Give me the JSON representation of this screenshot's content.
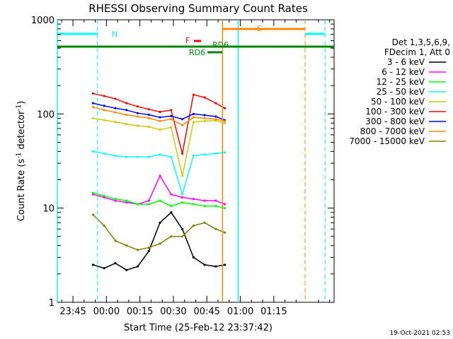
{
  "chart_data": {
    "type": "line",
    "title": "RHESSI Observing Summary Count Rates",
    "xlabel": "Start Time (25-Feb-12 23:37:42)",
    "ylabel_main": "Count Rate (s",
    "ylabel_sup1": "-1",
    "ylabel_mid": " detector",
    "ylabel_sup2": "-1",
    "ylabel_end": ")",
    "yscale": "log",
    "ylim": [
      1,
      1000
    ],
    "xlim_min": [
      -22,
      102
    ],
    "x_tick_minutes": [
      -15,
      0,
      15,
      30,
      45,
      60,
      75
    ],
    "x_tick_labels": [
      "23:45",
      "00:00",
      "00:15",
      "00:30",
      "00:45",
      "01:00",
      "01:15"
    ],
    "y_tick_values": [
      1,
      10,
      100,
      1000
    ],
    "y_tick_labels": [
      "1",
      "10",
      "100",
      "1000"
    ],
    "legend": {
      "header1": "Det 1,3,5,6,9,",
      "header2": "FDecim 1, Att 0",
      "entries": [
        "3 - 6 keV",
        "6 - 12 keV",
        "12 - 25 keV",
        "25 - 50 keV",
        "50 - 100 keV",
        "100 - 300 keV",
        "300 - 800 keV",
        "800 - 7000 keV",
        "7000 - 15000 keV"
      ],
      "colors": [
        "#000000",
        "#ff00ff",
        "#00ff00",
        "#00ffff",
        "#cccc00",
        "#ff0000",
        "#0000ff",
        "#ff8800",
        "#808000"
      ]
    },
    "annotations": {
      "N": "N",
      "S": "S",
      "F": "F",
      "RD1": "RD6",
      "RD2": "RD6"
    },
    "series": [
      {
        "name": "3 - 6 keV",
        "color": "#000000",
        "values": [
          2.5,
          2.3,
          2.6,
          2.2,
          2.4,
          3.5,
          7.0,
          9.0,
          6.0,
          3.0,
          2.5,
          2.4,
          2.5
        ]
      },
      {
        "name": "6 - 12 keV",
        "color": "#ff00ff",
        "values": [
          14,
          13,
          12,
          11.5,
          11,
          12,
          22,
          14,
          13,
          12.5,
          12,
          12,
          11
        ]
      },
      {
        "name": "12 - 25 keV",
        "color": "#00ff00",
        "values": [
          14.5,
          13.5,
          12.5,
          12,
          11,
          11,
          12,
          10.5,
          11.5,
          11,
          10.5,
          10.5,
          10
        ]
      },
      {
        "name": "25 - 50 keV",
        "color": "#00ffff",
        "values": [
          40,
          38,
          36,
          35,
          35,
          35,
          37,
          35,
          14,
          36,
          37,
          38,
          39
        ]
      },
      {
        "name": "50 - 100 keV",
        "color": "#cccc00",
        "values": [
          90,
          86,
          82,
          78,
          75,
          73,
          68,
          72,
          22,
          82,
          84,
          85,
          80
        ]
      },
      {
        "name": "100 - 300 keV",
        "color": "#ff0000",
        "values": [
          165,
          155,
          145,
          130,
          120,
          112,
          105,
          110,
          38,
          160,
          150,
          130,
          115
        ]
      },
      {
        "name": "300 - 800 keV",
        "color": "#0000ff",
        "values": [
          130,
          122,
          115,
          110,
          102,
          98,
          92,
          95,
          88,
          100,
          97,
          94,
          86
        ]
      },
      {
        "name": "800 - 7000 keV",
        "color": "#ff8800",
        "values": [
          118,
          110,
          104,
          98,
          94,
          90,
          84,
          88,
          76,
          92,
          90,
          88,
          84
        ]
      },
      {
        "name": "7000 - 15000 keV",
        "color": "#808000",
        "values": [
          8.5,
          6.5,
          4.5,
          4.0,
          3.6,
          3.8,
          4.2,
          5.0,
          5.0,
          6.5,
          7.0,
          6.0,
          5.5
        ]
      }
    ],
    "series_x_minutes": [
      -6,
      -1,
      4,
      9,
      14,
      19,
      24,
      29,
      34,
      39,
      44,
      49,
      53
    ]
  },
  "timestamp": "19-Oct-2021 02:53"
}
